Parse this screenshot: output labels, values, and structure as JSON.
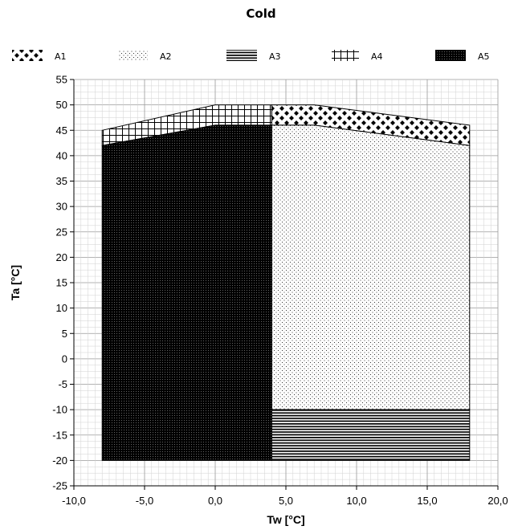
{
  "chart_data": {
    "type": "area",
    "title": "Cold",
    "xlabel": "Tw [°C]",
    "ylabel": "Ta [°C]",
    "xlim": [
      -10,
      20
    ],
    "ylim": [
      -25,
      55
    ],
    "xticks": [
      -10,
      -5,
      0,
      5,
      10,
      15,
      20
    ],
    "xtick_labels": [
      "-10,0",
      "-5,0",
      "0,0",
      "5,0",
      "10,0",
      "15,0",
      "20,0"
    ],
    "yticks": [
      55,
      50,
      45,
      40,
      35,
      30,
      25,
      20,
      15,
      10,
      5,
      0,
      -5,
      -10,
      -15,
      -20,
      -25
    ],
    "ytick_labels": [
      "55",
      "50",
      "45",
      "40",
      "35",
      "30",
      "25",
      "20",
      "15",
      "10",
      "5",
      "0",
      "-5",
      "-10",
      "-15",
      "-20",
      "-25"
    ],
    "grid": true,
    "legend_position": "top",
    "series": [
      {
        "name": "A1",
        "pattern": "diamonds",
        "points": [
          [
            4,
            46
          ],
          [
            4,
            50
          ],
          [
            7,
            50
          ],
          [
            18,
            46
          ],
          [
            18,
            42
          ],
          [
            7,
            46
          ]
        ]
      },
      {
        "name": "A2",
        "pattern": "dots",
        "points": [
          [
            4,
            -10
          ],
          [
            4,
            46
          ],
          [
            7,
            46
          ],
          [
            18,
            42
          ],
          [
            18,
            -10
          ]
        ]
      },
      {
        "name": "A3",
        "pattern": "horizontal-lines",
        "points": [
          [
            4,
            -20
          ],
          [
            4,
            -10
          ],
          [
            18,
            -10
          ],
          [
            18,
            -20
          ]
        ]
      },
      {
        "name": "A4",
        "pattern": "cross-hatch",
        "points": [
          [
            -8,
            42
          ],
          [
            -8,
            45
          ],
          [
            0,
            50
          ],
          [
            4,
            50
          ],
          [
            4,
            46
          ],
          [
            0,
            46
          ]
        ]
      },
      {
        "name": "A5",
        "pattern": "dense-dots",
        "points": [
          [
            -8,
            -20
          ],
          [
            -8,
            42
          ],
          [
            0,
            46
          ],
          [
            4,
            46
          ],
          [
            4,
            -20
          ]
        ]
      }
    ]
  }
}
